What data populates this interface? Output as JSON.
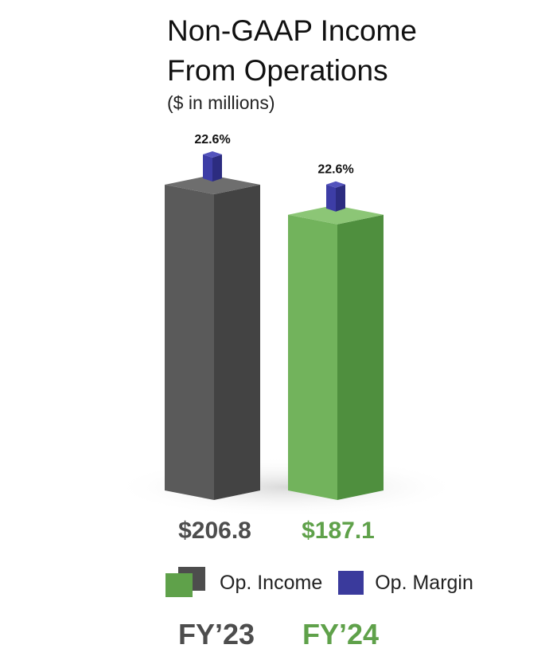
{
  "title_line1": "Non-GAAP Income",
  "title_line2": "From Operations",
  "subtitle": "($ in millions)",
  "chart_data": {
    "type": "bar",
    "categories": [
      "FY'23",
      "FY'24"
    ],
    "series": [
      {
        "name": "Op. Income",
        "values": [
          206.8,
          187.1
        ],
        "value_labels": [
          "$206.8",
          "$187.1"
        ],
        "colors": [
          "#4d4d4d",
          "#5fa14a"
        ]
      },
      {
        "name": "Op. Margin",
        "values": [
          22.6,
          22.6
        ],
        "value_labels": [
          "22.6%",
          "22.6%"
        ],
        "color": "#3a3a9c"
      }
    ]
  },
  "legend": {
    "income_label": "Op. Income",
    "margin_label": "Op. Margin"
  },
  "years": {
    "fy23": "FY’23",
    "fy24": "FY’24"
  },
  "colors": {
    "fy23": "#4d4d4d",
    "fy24": "#5fa14a",
    "margin": "#3a3a9c"
  }
}
